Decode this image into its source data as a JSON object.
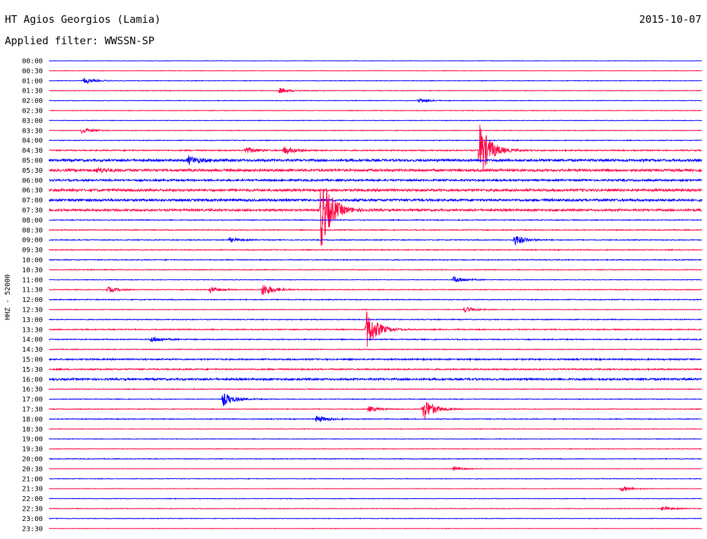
{
  "header": {
    "station": "HT Agios Georgios (Lamia)",
    "date": "2015-10-07",
    "filter": "Applied filter: WWSSN-SP"
  },
  "chart_data": {
    "type": "line",
    "title": "HT Agios Georgios (Lamia)",
    "subtitle": "Applied filter: WWSSN-SP",
    "ylabel": "HHZ - 52000",
    "xlabel": "",
    "grid": false,
    "colors": {
      "even_rows": "#0000ff",
      "odd_rows": "#ff0040"
    },
    "row_labels": [
      "00:00",
      "00:30",
      "01:00",
      "01:30",
      "02:00",
      "02:30",
      "03:00",
      "03:30",
      "04:00",
      "04:30",
      "05:00",
      "05:30",
      "06:00",
      "06:30",
      "07:00",
      "07:30",
      "08:00",
      "08:30",
      "09:00",
      "09:30",
      "10:00",
      "10:30",
      "11:00",
      "11:30",
      "12:00",
      "12:30",
      "13:00",
      "13:30",
      "14:00",
      "14:30",
      "15:00",
      "15:30",
      "16:00",
      "16:30",
      "17:00",
      "17:30",
      "18:00",
      "18:30",
      "19:00",
      "19:30",
      "20:00",
      "20:30",
      "21:00",
      "21:30",
      "22:00",
      "22:30",
      "23:00",
      "23:30"
    ],
    "x_range_minutes": [
      0,
      30
    ],
    "noise_amplitude": [
      0.3,
      0.3,
      0.4,
      0.4,
      0.4,
      0.4,
      0.4,
      0.4,
      0.5,
      0.8,
      1.6,
      1.6,
      1.3,
      1.6,
      1.6,
      1.4,
      0.6,
      0.6,
      0.6,
      0.6,
      0.6,
      0.5,
      0.4,
      0.5,
      0.6,
      0.4,
      0.6,
      0.7,
      0.7,
      0.5,
      1.0,
      0.9,
      1.4,
      0.5,
      0.5,
      0.5,
      0.6,
      0.4,
      0.4,
      0.4,
      0.5,
      0.3,
      0.4,
      0.3,
      0.4,
      0.4,
      0.4,
      0.3
    ],
    "events": [
      {
        "row": 2,
        "minute": 1.6,
        "amplitude": 4
      },
      {
        "row": 3,
        "minute": 10.6,
        "amplitude": 4
      },
      {
        "row": 4,
        "minute": 17.0,
        "amplitude": 3
      },
      {
        "row": 7,
        "minute": 1.5,
        "amplitude": 4
      },
      {
        "row": 9,
        "minute": 9.0,
        "amplitude": 5
      },
      {
        "row": 9,
        "minute": 10.8,
        "amplitude": 6
      },
      {
        "row": 9,
        "minute": 19.8,
        "amplitude": 40
      },
      {
        "row": 10,
        "minute": 6.4,
        "amplitude": 6
      },
      {
        "row": 11,
        "minute": 2.2,
        "amplitude": 4
      },
      {
        "row": 15,
        "minute": 12.5,
        "amplitude": 55
      },
      {
        "row": 18,
        "minute": 8.3,
        "amplitude": 3
      },
      {
        "row": 18,
        "minute": 21.4,
        "amplitude": 8
      },
      {
        "row": 23,
        "minute": 2.7,
        "amplitude": 4
      },
      {
        "row": 23,
        "minute": 7.4,
        "amplitude": 4
      },
      {
        "row": 23,
        "minute": 9.8,
        "amplitude": 10
      },
      {
        "row": 22,
        "minute": 18.6,
        "amplitude": 5
      },
      {
        "row": 25,
        "minute": 19.1,
        "amplitude": 4
      },
      {
        "row": 27,
        "minute": 14.6,
        "amplitude": 28
      },
      {
        "row": 28,
        "minute": 4.7,
        "amplitude": 4
      },
      {
        "row": 34,
        "minute": 8.0,
        "amplitude": 10
      },
      {
        "row": 35,
        "minute": 14.7,
        "amplitude": 4
      },
      {
        "row": 35,
        "minute": 17.2,
        "amplitude": 17
      },
      {
        "row": 36,
        "minute": 12.3,
        "amplitude": 5
      },
      {
        "row": 41,
        "minute": 18.6,
        "amplitude": 3
      },
      {
        "row": 43,
        "minute": 26.3,
        "amplitude": 4
      },
      {
        "row": 45,
        "minute": 28.2,
        "amplitude": 3
      }
    ]
  }
}
